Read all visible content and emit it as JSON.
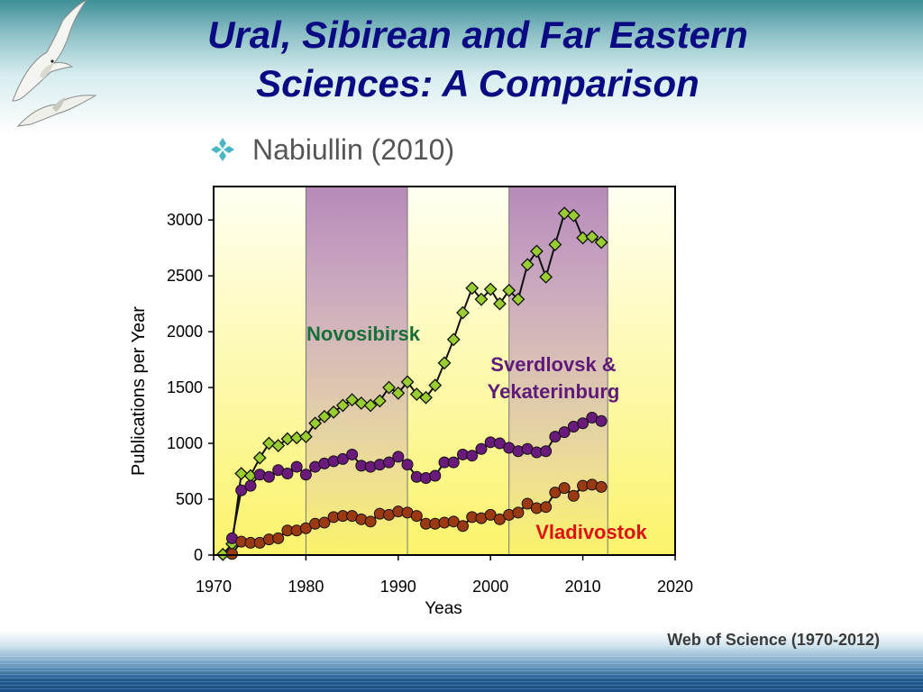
{
  "slide": {
    "title_line1": "Ural, Sibirean and Far Eastern",
    "title_line2": "Sciences: A Comparison",
    "bullet": "Nabiullin (2010)",
    "source": "Web of Science (1970-2012)"
  },
  "colors": {
    "title": "#0a0a82",
    "novosibirsk_label": "#1a6e3a",
    "novosibirsk_marker": "#9acd32",
    "sverdlovsk_label": "#5e1a78",
    "sverdlovsk_marker": "#6a1a7a",
    "vladivostok_label": "#e01010",
    "vladivostok_marker": "#9b3a12",
    "highlight_band": "#b98aba"
  },
  "chart_data": {
    "type": "line",
    "xlabel": "Yeas",
    "ylabel": "Publications per Year",
    "xlim": [
      1970,
      2020
    ],
    "ylim": [
      0,
      3300
    ],
    "xticks": [
      1970,
      1980,
      1990,
      2000,
      2010,
      2020
    ],
    "yticks": [
      0,
      500,
      1000,
      1500,
      2000,
      2500,
      3000
    ],
    "highlight_periods": [
      [
        1980,
        1991
      ],
      [
        2002,
        2012.7
      ]
    ],
    "gridlines": "none",
    "series": [
      {
        "name": "Novosibirsk",
        "marker": "diamond",
        "x": [
          1971,
          1972,
          1973,
          1974,
          1975,
          1976,
          1977,
          1978,
          1979,
          1980,
          1981,
          1982,
          1983,
          1984,
          1985,
          1986,
          1987,
          1988,
          1989,
          1990,
          1991,
          1992,
          1993,
          1994,
          1995,
          1996,
          1997,
          1998,
          1999,
          2000,
          2001,
          2002,
          2003,
          2004,
          2005,
          2006,
          2007,
          2008,
          2009,
          2010,
          2011,
          2012
        ],
        "values": [
          5,
          100,
          730,
          710,
          870,
          1000,
          980,
          1040,
          1050,
          1060,
          1180,
          1240,
          1280,
          1340,
          1390,
          1360,
          1340,
          1380,
          1500,
          1450,
          1550,
          1440,
          1410,
          1520,
          1720,
          1930,
          2170,
          2390,
          2290,
          2380,
          2250,
          2370,
          2290,
          2600,
          2720,
          2490,
          2780,
          3060,
          3040,
          2840,
          2850,
          2800
        ]
      },
      {
        "name": "Sverdlovsk & Yekaterinburg",
        "marker": "circle",
        "x": [
          1972,
          1973,
          1974,
          1975,
          1976,
          1977,
          1978,
          1979,
          1980,
          1981,
          1982,
          1983,
          1984,
          1985,
          1986,
          1987,
          1988,
          1989,
          1990,
          1991,
          1992,
          1993,
          1994,
          1995,
          1996,
          1997,
          1998,
          1999,
          2000,
          2001,
          2002,
          2003,
          2004,
          2005,
          2006,
          2007,
          2008,
          2009,
          2010,
          2011,
          2012
        ],
        "values": [
          150,
          580,
          620,
          720,
          700,
          760,
          730,
          790,
          720,
          790,
          820,
          840,
          860,
          900,
          800,
          790,
          810,
          830,
          880,
          810,
          700,
          690,
          710,
          830,
          830,
          900,
          890,
          950,
          1010,
          1000,
          960,
          930,
          950,
          920,
          930,
          1060,
          1100,
          1150,
          1180,
          1230,
          1200
        ]
      },
      {
        "name": "Vladivostok",
        "marker": "circle",
        "x": [
          1972,
          1973,
          1974,
          1975,
          1976,
          1977,
          1978,
          1979,
          1980,
          1981,
          1982,
          1983,
          1984,
          1985,
          1986,
          1987,
          1988,
          1989,
          1990,
          1991,
          1992,
          1993,
          1994,
          1995,
          1996,
          1997,
          1998,
          1999,
          2000,
          2001,
          2002,
          2003,
          2004,
          2005,
          2006,
          2007,
          2008,
          2009,
          2010,
          2011,
          2012
        ],
        "values": [
          10,
          120,
          110,
          110,
          140,
          150,
          220,
          220,
          240,
          280,
          290,
          340,
          350,
          350,
          320,
          300,
          370,
          360,
          390,
          380,
          350,
          280,
          280,
          290,
          300,
          260,
          340,
          330,
          360,
          320,
          360,
          380,
          460,
          420,
          430,
          560,
          600,
          530,
          620,
          630,
          610
        ]
      }
    ],
    "annotations": [
      {
        "text": "Novosibirsk",
        "series": "Novosibirsk"
      },
      {
        "text": "Sverdlovsk &",
        "series": "Sverdlovsk & Yekaterinburg"
      },
      {
        "text": "Yekaterinburg",
        "series": "Sverdlovsk & Yekaterinburg"
      },
      {
        "text": "Vladivostok",
        "series": "Vladivostok"
      }
    ]
  }
}
